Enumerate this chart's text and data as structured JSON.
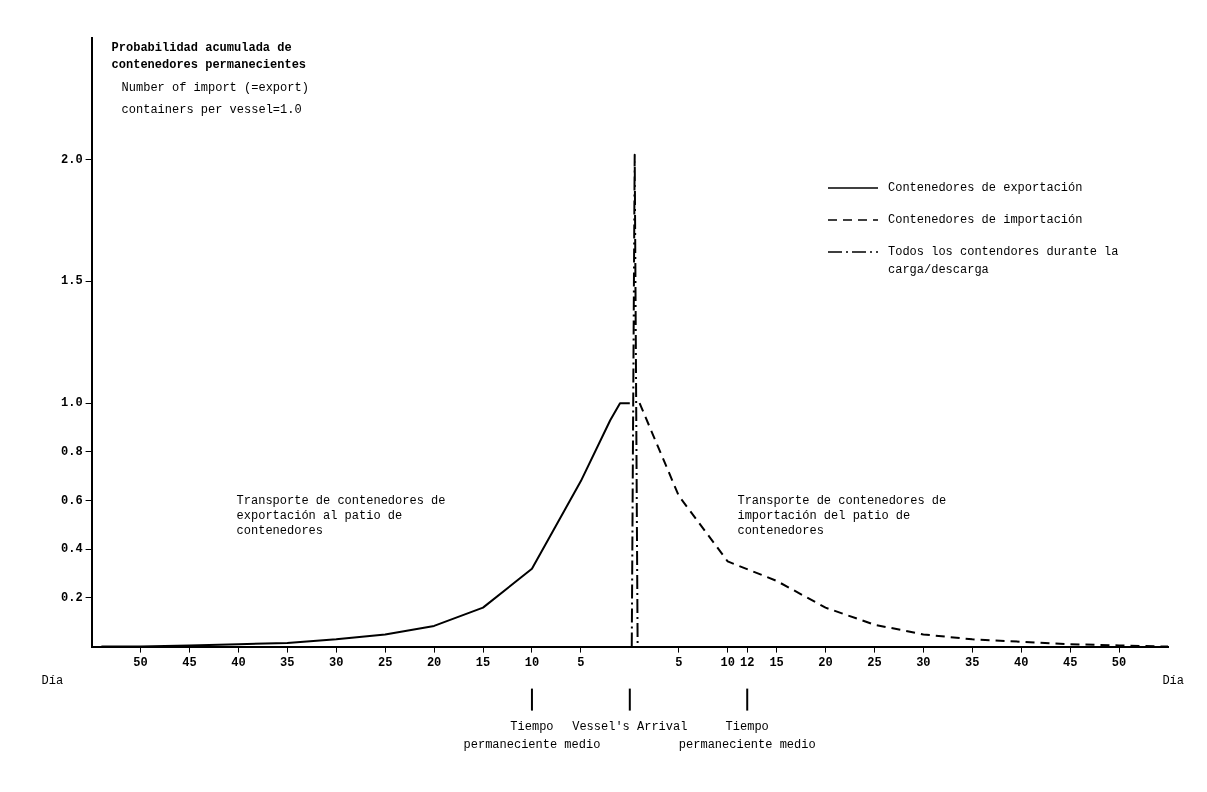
{
  "chart_data": {
    "type": "line",
    "title": "Probabilidad acumulada de contenedores permanecientes",
    "subtitle": "Number of import (=export) containers per vessel=1.0",
    "xlabel": "Día",
    "xlim": [
      -55,
      55
    ],
    "ylim": [
      0,
      2.5
    ],
    "xticks": [
      {
        "value": -50,
        "label": "50"
      },
      {
        "value": -45,
        "label": "45"
      },
      {
        "value": -40,
        "label": "40"
      },
      {
        "value": -35,
        "label": "35"
      },
      {
        "value": -30,
        "label": "30"
      },
      {
        "value": -25,
        "label": "25"
      },
      {
        "value": -20,
        "label": "20"
      },
      {
        "value": -15,
        "label": "15"
      },
      {
        "value": -10,
        "label": "10"
      },
      {
        "value": -5,
        "label": "5"
      },
      5,
      10,
      12,
      15,
      20,
      25,
      30,
      35,
      40,
      45,
      50
    ],
    "yticks": [
      0.2,
      0.4,
      0.6,
      0.8,
      {
        "value": 1,
        "label": "1.0"
      },
      1.5,
      {
        "value": 2,
        "label": "2.0"
      }
    ],
    "legend": "right",
    "series": [
      {
        "name": "Contenedores de exportación",
        "color": "#000000",
        "line_style": "solid",
        "x": [
          -54,
          -50,
          -45,
          -40,
          -35,
          -30,
          -25,
          -20,
          -15,
          -10,
          -5,
          -2,
          -1,
          0
        ],
        "values": [
          0,
          0,
          0.005,
          0.01,
          0.015,
          0.03,
          0.05,
          0.085,
          0.16,
          0.32,
          0.68,
          0.93,
          1.0,
          1.0
        ]
      },
      {
        "name": "Contenedores de importación",
        "color": "#000000",
        "line_style": "dashed",
        "x": [
          1,
          5,
          10,
          15,
          20,
          25,
          30,
          35,
          40,
          45,
          50,
          55
        ],
        "values": [
          1.0,
          0.62,
          0.35,
          0.27,
          0.16,
          0.09,
          0.05,
          0.03,
          0.02,
          0.01,
          0.005,
          0
        ]
      },
      {
        "name": "Todos los contendores durante la carga/descarga",
        "color": "#000000",
        "line_style": "dotted",
        "x": [
          0.2,
          0.5,
          0.8
        ],
        "values": [
          0,
          2.02,
          0
        ]
      }
    ],
    "ref_lines": [
      {
        "axis": "x",
        "value": -10,
        "label": "Tiempo permaneciente medio"
      },
      {
        "axis": "x",
        "value": 0,
        "label": "Vessel's Arrival"
      },
      {
        "axis": "x",
        "value": 12,
        "label": "Tiempo permaneciente medio"
      }
    ],
    "annotations": [
      "Transporte de contenedores de exportación al patio de contenedores",
      "Transporte de contenedores de importación del patio de contenedores"
    ]
  }
}
